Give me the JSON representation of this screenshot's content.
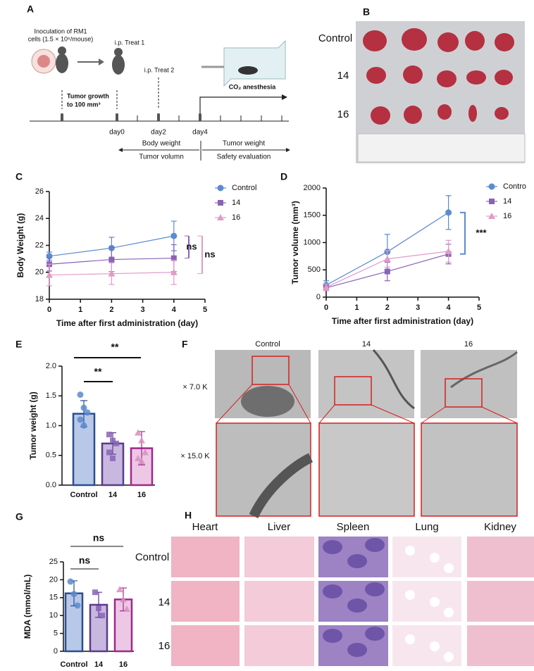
{
  "panel_a": {
    "label": "A",
    "inoculation": [
      "Inoculation of RM1",
      "cells (1.5 × 10⁵/mouse)"
    ],
    "treat_1": "i.p. Treat 1",
    "treat_2": "i.p. Treat 2",
    "anesthesia": "CO₂ anesthesia",
    "tumor_growth": [
      "Tumor growth",
      "to 100 mm³"
    ],
    "days": [
      "day0",
      "day2",
      "day4"
    ],
    "phase_1": [
      "Body weight",
      "Tumor volumn"
    ],
    "phase_2": [
      "Tumor weight",
      "Safety evaluation"
    ]
  },
  "panel_b": {
    "label": "B",
    "rows": [
      "Control",
      "14",
      "16"
    ]
  },
  "panel_f": {
    "label": "F",
    "columns": [
      "Control",
      "14",
      "16"
    ],
    "rows": [
      "× 7.0 K",
      "× 15.0 K"
    ]
  },
  "panel_h": {
    "label": "H",
    "columns": [
      "Heart",
      "Liver",
      "Spleen",
      "Lung",
      "Kidney"
    ],
    "rows": [
      "Control",
      "14",
      "16"
    ]
  },
  "chart_data": [
    {
      "type": "line",
      "panel": "C",
      "x_label": "Time after first administration (day)",
      "y_label": "Body Weight (g)",
      "x": [
        0,
        2,
        4
      ],
      "xlim": [
        0,
        5
      ],
      "xticks": [
        0,
        1,
        2,
        3,
        4,
        5
      ],
      "ylim": [
        18,
        26
      ],
      "yticks": [
        18,
        20,
        22,
        24,
        26
      ],
      "series": [
        {
          "name": "Control",
          "color": "#5b8bd0",
          "marker": "circle",
          "values": [
            21.2,
            21.8,
            22.7
          ],
          "errors": [
            0.3,
            0.8,
            1.1
          ]
        },
        {
          "name": "14",
          "color": "#8a63b5",
          "marker": "square",
          "values": [
            20.6,
            20.95,
            21.05
          ],
          "errors": [
            0.5,
            0.9,
            1.0
          ]
        },
        {
          "name": "16",
          "color": "#e09cc8",
          "marker": "triangle",
          "values": [
            19.8,
            19.9,
            20.0
          ],
          "errors": [
            0.8,
            0.8,
            0.9
          ]
        }
      ],
      "annotations": [
        "ns",
        "ns"
      ]
    },
    {
      "type": "line",
      "panel": "D",
      "x_label": "Time after first administration (day)",
      "y_label": "Tumor volume (mm³)",
      "x": [
        0,
        2,
        4
      ],
      "xlim": [
        0,
        5
      ],
      "xticks": [
        0,
        1,
        2,
        3,
        4,
        5
      ],
      "ylim": [
        0,
        2000
      ],
      "yticks": [
        0,
        500,
        1000,
        1500,
        2000
      ],
      "series": [
        {
          "name": "Contro",
          "color": "#5b8bd0",
          "marker": "circle",
          "values": [
            220,
            830,
            1550
          ],
          "errors": [
            80,
            320,
            310
          ]
        },
        {
          "name": "14",
          "color": "#8a63b5",
          "marker": "square",
          "values": [
            170,
            470,
            790
          ],
          "errors": [
            50,
            170,
            180
          ]
        },
        {
          "name": "16",
          "color": "#e09cc8",
          "marker": "triangle",
          "values": [
            180,
            700,
            840
          ],
          "errors": [
            60,
            150,
            200
          ]
        }
      ],
      "annotations": [
        "***"
      ]
    },
    {
      "type": "bar",
      "panel": "E",
      "y_label": "Tumor weight (g)",
      "categories": [
        "Control",
        "14",
        "16"
      ],
      "values": [
        1.2,
        0.7,
        0.62
      ],
      "errors": [
        0.22,
        0.18,
        0.28
      ],
      "points": [
        [
          1.52,
          1.3,
          1.22,
          1.1,
          1.0
        ],
        [
          0.85,
          0.75,
          0.7,
          0.55,
          0.45
        ],
        [
          0.88,
          0.75,
          0.55,
          0.45,
          0.4
        ]
      ],
      "colors": [
        "#b8c8e8",
        "#c8b8e0",
        "#ecc8e4"
      ],
      "edge_colors": [
        "#2a4f8f",
        "#5a3a8c",
        "#a0288c"
      ],
      "ylim": [
        0,
        2
      ],
      "yticks": [
        {
          "value": 0,
          "label": "0.0"
        },
        0.5,
        {
          "value": 1,
          "label": "1.0"
        },
        1.5,
        {
          "value": 2,
          "label": "2.0"
        }
      ],
      "annotations": [
        "**",
        "**"
      ]
    },
    {
      "type": "bar",
      "panel": "G",
      "y_label": "MDA (mmol/mL)",
      "categories": [
        "Control",
        "14",
        "16"
      ],
      "values": [
        16.2,
        13,
        14.5
      ],
      "errors": [
        3.5,
        3.5,
        3.2
      ],
      "points": [
        [
          19.5,
          16,
          12.8
        ],
        [
          16.5,
          12,
          10
        ],
        [
          17.3,
          14.5,
          11.8
        ]
      ],
      "colors": [
        "#b8c8e8",
        "#c8b8e0",
        "#ecc8e4"
      ],
      "edge_colors": [
        "#2a4f8f",
        "#5a3a8c",
        "#a0288c"
      ],
      "ylim": [
        0,
        25
      ],
      "yticks": [
        0,
        5,
        10,
        15,
        20,
        25
      ],
      "annotations": [
        "ns",
        "ns"
      ]
    }
  ]
}
